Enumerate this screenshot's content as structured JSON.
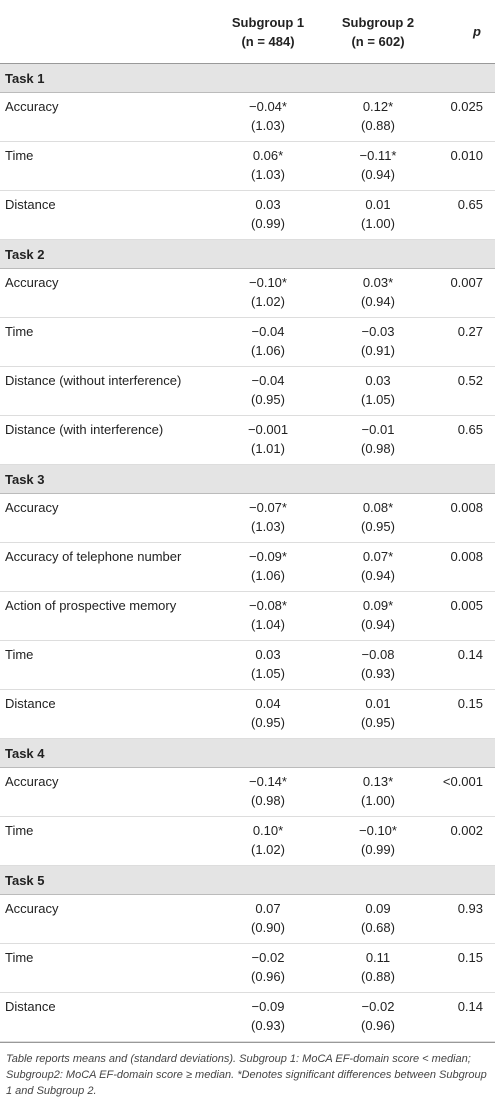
{
  "header": {
    "subgroup1": [
      "Subgroup 1",
      "(n = 484)"
    ],
    "subgroup2": [
      "Subgroup 2",
      "(n = 602)"
    ],
    "p": "p"
  },
  "sections": [
    {
      "title": "Task 1",
      "rows": [
        {
          "label": "Accuracy",
          "s1": [
            "−0.04*",
            "(1.03)"
          ],
          "s2": [
            "0.12*",
            "(0.88)"
          ],
          "p": "0.025"
        },
        {
          "label": "Time",
          "s1": [
            "0.06*",
            "(1.03)"
          ],
          "s2": [
            "−0.11*",
            "(0.94)"
          ],
          "p": "0.010"
        },
        {
          "label": "Distance",
          "s1": [
            "0.03",
            "(0.99)"
          ],
          "s2": [
            "0.01",
            "(1.00)"
          ],
          "p": "0.65"
        }
      ]
    },
    {
      "title": "Task 2",
      "rows": [
        {
          "label": "Accuracy",
          "s1": [
            "−0.10*",
            "(1.02)"
          ],
          "s2": [
            "0.03*",
            "(0.94)"
          ],
          "p": "0.007"
        },
        {
          "label": "Time",
          "s1": [
            "−0.04",
            "(1.06)"
          ],
          "s2": [
            "−0.03",
            "(0.91)"
          ],
          "p": "0.27"
        },
        {
          "label": "Distance (without interference)",
          "s1": [
            "−0.04",
            "(0.95)"
          ],
          "s2": [
            "0.03",
            "(1.05)"
          ],
          "p": "0.52"
        },
        {
          "label": "Distance (with interference)",
          "s1": [
            "−0.001",
            "(1.01)"
          ],
          "s2": [
            "−0.01",
            "(0.98)"
          ],
          "p": "0.65"
        }
      ]
    },
    {
      "title": "Task 3",
      "rows": [
        {
          "label": "Accuracy",
          "s1": [
            "−0.07*",
            "(1.03)"
          ],
          "s2": [
            "0.08*",
            "(0.95)"
          ],
          "p": "0.008"
        },
        {
          "label": "Accuracy of telephone number",
          "s1": [
            "−0.09*",
            "(1.06)"
          ],
          "s2": [
            "0.07*",
            "(0.94)"
          ],
          "p": "0.008"
        },
        {
          "label": "Action of prospective memory",
          "s1": [
            "−0.08*",
            "(1.04)"
          ],
          "s2": [
            "0.09*",
            "(0.94)"
          ],
          "p": "0.005"
        },
        {
          "label": "Time",
          "s1": [
            "0.03",
            "(1.05)"
          ],
          "s2": [
            "−0.08",
            "(0.93)"
          ],
          "p": "0.14"
        },
        {
          "label": "Distance",
          "s1": [
            "0.04",
            "(0.95)"
          ],
          "s2": [
            "0.01",
            "(0.95)"
          ],
          "p": "0.15"
        }
      ]
    },
    {
      "title": "Task 4",
      "rows": [
        {
          "label": "Accuracy",
          "s1": [
            "−0.14*",
            "(0.98)"
          ],
          "s2": [
            "0.13*",
            "(1.00)"
          ],
          "p": "<0.001"
        },
        {
          "label": "Time",
          "s1": [
            "0.10*",
            "(1.02)"
          ],
          "s2": [
            "−0.10*",
            "(0.99)"
          ],
          "p": "0.002"
        }
      ]
    },
    {
      "title": "Task 5",
      "rows": [
        {
          "label": "Accuracy",
          "s1": [
            "0.07",
            "(0.90)"
          ],
          "s2": [
            "0.09",
            "(0.68)"
          ],
          "p": "0.93"
        },
        {
          "label": "Time",
          "s1": [
            "−0.02",
            "(0.96)"
          ],
          "s2": [
            "0.11",
            "(0.88)"
          ],
          "p": "0.15"
        },
        {
          "label": "Distance",
          "s1": [
            "−0.09",
            "(0.93)"
          ],
          "s2": [
            "−0.02",
            "(0.96)"
          ],
          "p": "0.14"
        }
      ]
    }
  ],
  "footnote": "Table reports means and (standard deviations). Subgroup 1: MoCA EF-domain score < median; Subgroup2: MoCA EF-domain score ≥ median. *Denotes significant differences between Subgroup 1 and Subgroup 2."
}
